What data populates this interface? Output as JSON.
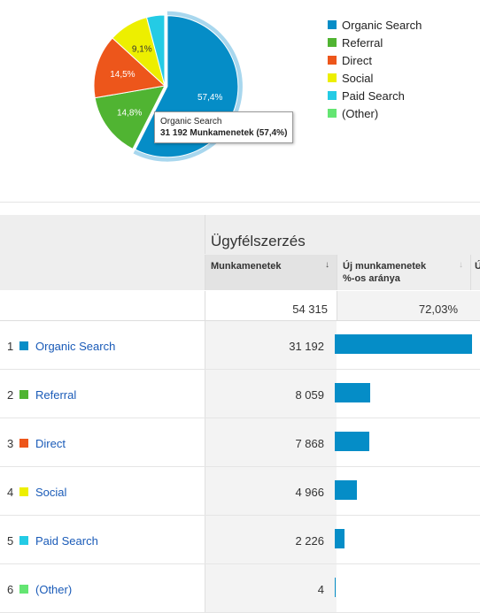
{
  "chart_data": {
    "type": "pie",
    "title": "",
    "slices": [
      {
        "label": "Organic Search",
        "value": 57.4,
        "display": "57,4%",
        "color": "#058dc7"
      },
      {
        "label": "Referral",
        "value": 14.8,
        "display": "14,8%",
        "color": "#50b432"
      },
      {
        "label": "Direct",
        "value": 14.5,
        "display": "14,5%",
        "color": "#ed561b"
      },
      {
        "label": "Social",
        "value": 9.1,
        "display": "9,1%",
        "color": "#edef00"
      },
      {
        "label": "Paid Search",
        "value": 4.1,
        "display": "",
        "color": "#24cbe5"
      },
      {
        "label": "(Other)",
        "value": 0.01,
        "display": "",
        "color": "#64e572"
      }
    ],
    "highlighted": "Organic Search"
  },
  "legend": [
    {
      "label": "Organic Search",
      "color": "#058dc7"
    },
    {
      "label": "Referral",
      "color": "#50b432"
    },
    {
      "label": "Direct",
      "color": "#ed561b"
    },
    {
      "label": "Social",
      "color": "#edef00"
    },
    {
      "label": "Paid Search",
      "color": "#24cbe5"
    },
    {
      "label": "(Other)",
      "color": "#64e572"
    }
  ],
  "tooltip": {
    "title": "Organic Search",
    "value": "31 192 Munkamenetek (57,4%)"
  },
  "table": {
    "group_label": "Ügyfélszerzés",
    "col_sessions": "Munkamenetek",
    "col_sessions_sort": "↓",
    "col_new_line1": "Új munkamenetek",
    "col_new_line2": "%-os aránya",
    "col_new_sort": "↓",
    "col_next": "Ú",
    "total_sessions": "54 315",
    "total_new": "72,03%",
    "rows": [
      {
        "index": "1",
        "channel": "Organic Search",
        "color": "#058dc7",
        "sessions": "31 192",
        "share": 1.0
      },
      {
        "index": "2",
        "channel": "Referral",
        "color": "#50b432",
        "sessions": "8 059",
        "share": 0.258
      },
      {
        "index": "3",
        "channel": "Direct",
        "color": "#ed561b",
        "sessions": "7 868",
        "share": 0.252
      },
      {
        "index": "4",
        "channel": "Social",
        "color": "#edef00",
        "sessions": "4 966",
        "share": 0.159
      },
      {
        "index": "5",
        "channel": "Paid Search",
        "color": "#24cbe5",
        "sessions": "2 226",
        "share": 0.071
      },
      {
        "index": "6",
        "channel": "(Other)",
        "color": "#64e572",
        "sessions": "4",
        "share": 0.0001
      }
    ]
  }
}
